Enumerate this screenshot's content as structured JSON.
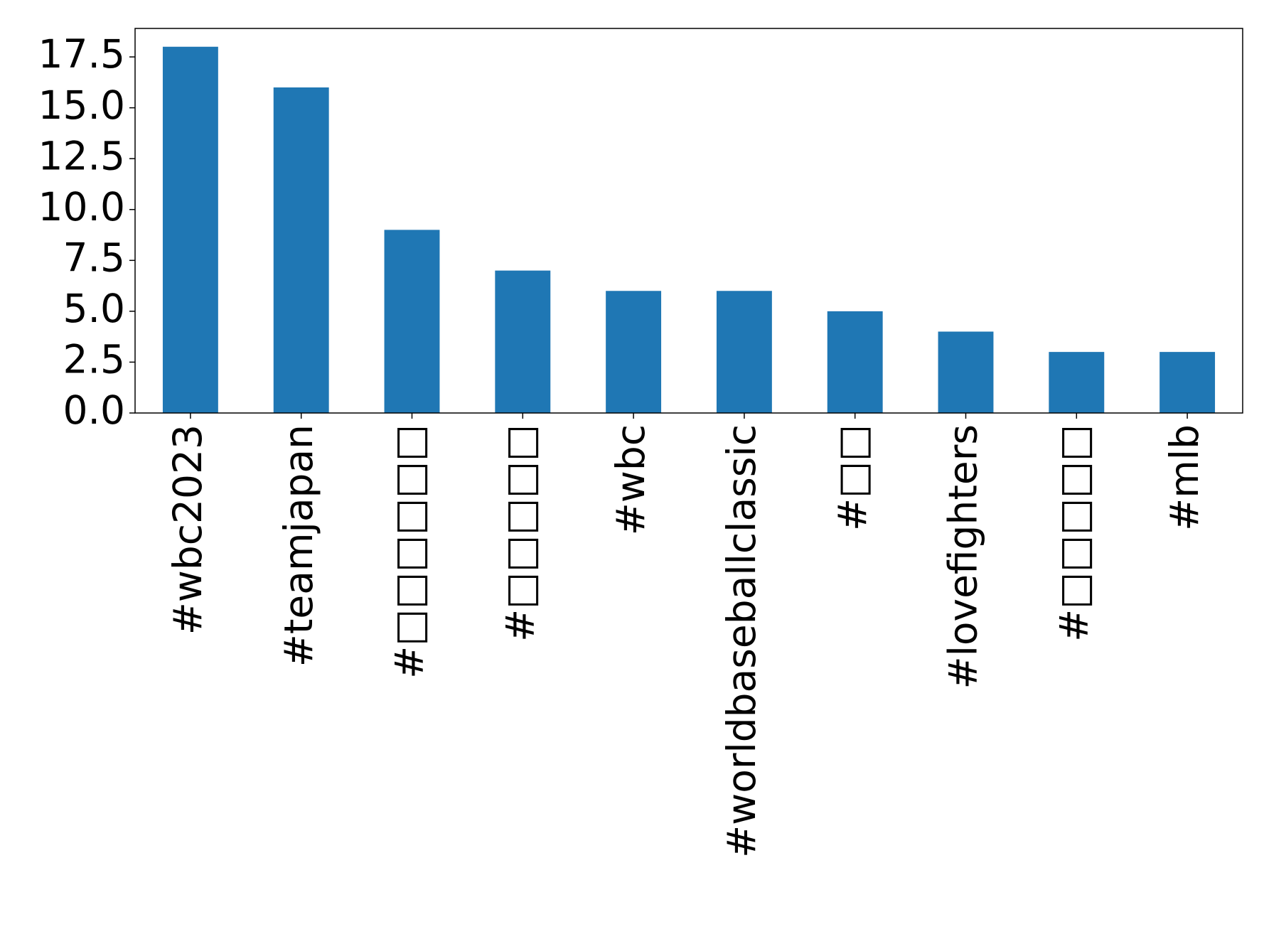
{
  "chart_data": {
    "type": "bar",
    "categories": [
      "#wbc2023",
      "#teamjapan",
      "#□□□□□□",
      "#□□□□□",
      "#wbc",
      "#worldbaseballclassic",
      "#□□",
      "#lovefighters",
      "#□□□□□",
      "#mlb"
    ],
    "values": [
      18,
      16,
      9,
      7,
      6,
      6,
      5,
      4,
      3,
      3
    ],
    "color": "#1f77b4",
    "ylim": [
      0,
      18.9
    ],
    "yticks": [
      0.0,
      2.5,
      5.0,
      7.5,
      10.0,
      12.5,
      15.0,
      17.5
    ],
    "ytick_labels": [
      "0.0",
      "2.5",
      "5.0",
      "7.5",
      "10.0",
      "12.5",
      "15.0",
      "17.5"
    ],
    "grid": false
  }
}
